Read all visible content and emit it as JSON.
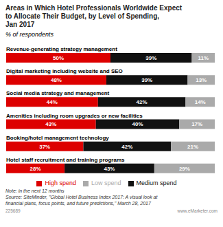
{
  "chart_data": {
    "type": "bar",
    "orientation": "horizontal",
    "stacked": true,
    "data_labels": true,
    "tick_labels": false,
    "grid": false,
    "legend": "bottom",
    "title": "Areas in Which Hotel Professionals Worldwide Expect\nto Allocate Their Budget, by Level of Spending,\nJan 2017",
    "subtitle": "% of respondents",
    "categories": [
      "Revenue-generating strategy management",
      "Digital marketing including website and SEO",
      "Social media strategy and management",
      "Amenities including room upgrades or new facilities",
      "Booking/hotel management technology",
      "Hotel staff recruitment and training programs"
    ],
    "series": [
      {
        "name": "High spend",
        "color": "#dd0000",
        "values": [
          50,
          48,
          44,
          43,
          37,
          28
        ],
        "value_labels": [
          "50%",
          "48%",
          "44%",
          "43%",
          "37%",
          "28%"
        ]
      },
      {
        "name": "Medium spend",
        "color": "#111111",
        "values": [
          39,
          39,
          42,
          40,
          42,
          43
        ],
        "value_labels": [
          "39%",
          "39%",
          "42%",
          "40%",
          "42%",
          "43%"
        ]
      },
      {
        "name": "Low spend",
        "color": "#aaaaaa",
        "values": [
          11,
          13,
          14,
          17,
          21,
          29
        ],
        "value_labels": [
          "11%",
          "13%",
          "14%",
          "17%",
          "21%",
          "29%"
        ]
      }
    ],
    "xlim": [
      0,
      100
    ],
    "annotations": [
      "Note: in the next 12 months\nSource: SiteMinder, \"Global Hotel Business Index 2017: A visual look at\nfinancial plans, focus points, and future predictions,\" March 28, 2017",
      "225689",
      "www.eMarketer.com"
    ]
  }
}
